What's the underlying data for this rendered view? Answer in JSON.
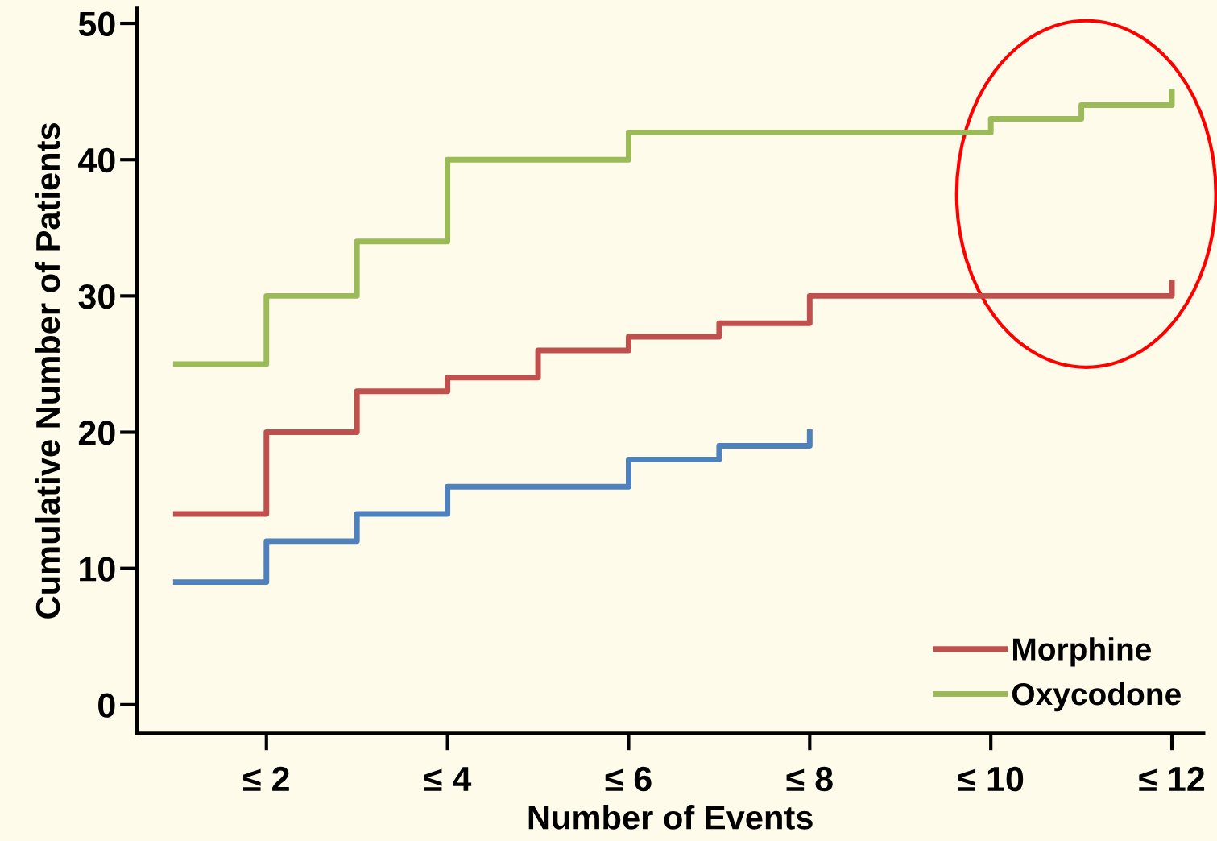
{
  "chart_data": {
    "type": "step",
    "xlabel": "Number of Events",
    "ylabel": "Cumulative Number of Patients",
    "categories": [
      null,
      "≤ 2",
      null,
      "≤ 4",
      null,
      "≤ 6",
      null,
      "≤ 8",
      null,
      "≤ 10",
      null,
      "≤ 12"
    ],
    "series": [
      {
        "color": "#4f81bd",
        "values": [
          9,
          12,
          14,
          16,
          16,
          18,
          19,
          20,
          null,
          null,
          null,
          null
        ]
      },
      {
        "name": "Morphine",
        "color": "#c0504d",
        "values": [
          14,
          20,
          23,
          24,
          26,
          27,
          28,
          30,
          30,
          30,
          30,
          31
        ]
      },
      {
        "name": "Oxycodone",
        "color": "#9bbb59",
        "values": [
          25,
          30,
          34,
          40,
          40,
          42,
          42,
          42,
          42,
          43,
          44,
          45
        ]
      }
    ],
    "ylim": [
      -2.1,
      51.1
    ],
    "yticks": [
      0,
      10,
      20,
      30,
      40,
      50
    ],
    "grid": false,
    "legend": "bottom right",
    "marker": "none",
    "line_style": "solid"
  }
}
